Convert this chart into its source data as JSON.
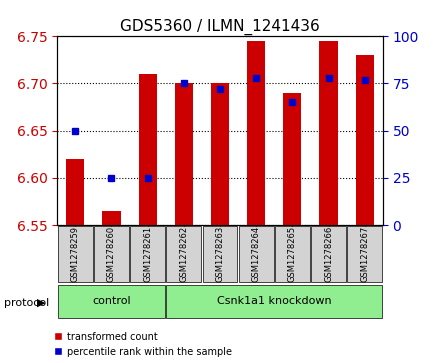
{
  "title": "GDS5360 / ILMN_1241436",
  "samples": [
    "GSM1278259",
    "GSM1278260",
    "GSM1278261",
    "GSM1278262",
    "GSM1278263",
    "GSM1278264",
    "GSM1278265",
    "GSM1278266",
    "GSM1278267"
  ],
  "bar_values": [
    6.62,
    6.565,
    6.71,
    6.7,
    6.7,
    6.745,
    6.69,
    6.745,
    6.73
  ],
  "percentile_values": [
    50,
    25,
    25,
    75,
    72,
    78,
    65,
    78,
    77
  ],
  "bar_bottom": 6.55,
  "ylim_left": [
    6.55,
    6.75
  ],
  "ylim_right": [
    0,
    100
  ],
  "yticks_left": [
    6.55,
    6.6,
    6.65,
    6.7,
    6.75
  ],
  "yticks_right": [
    0,
    25,
    50,
    75,
    100
  ],
  "bar_color": "#cc0000",
  "dot_color": "#0000cc",
  "control_label": "control",
  "knockdown_label": "Csnk1a1 knockdown",
  "protocol_label": "protocol",
  "control_count": 3,
  "knockdown_count": 6,
  "legend_bar_label": "transformed count",
  "legend_dot_label": "percentile rank within the sample",
  "group_color": "#90ee90",
  "ylabel_left_color": "#cc0000",
  "ylabel_right_color": "#0000cc",
  "tick_label_bgcolor": "#d3d3d3"
}
